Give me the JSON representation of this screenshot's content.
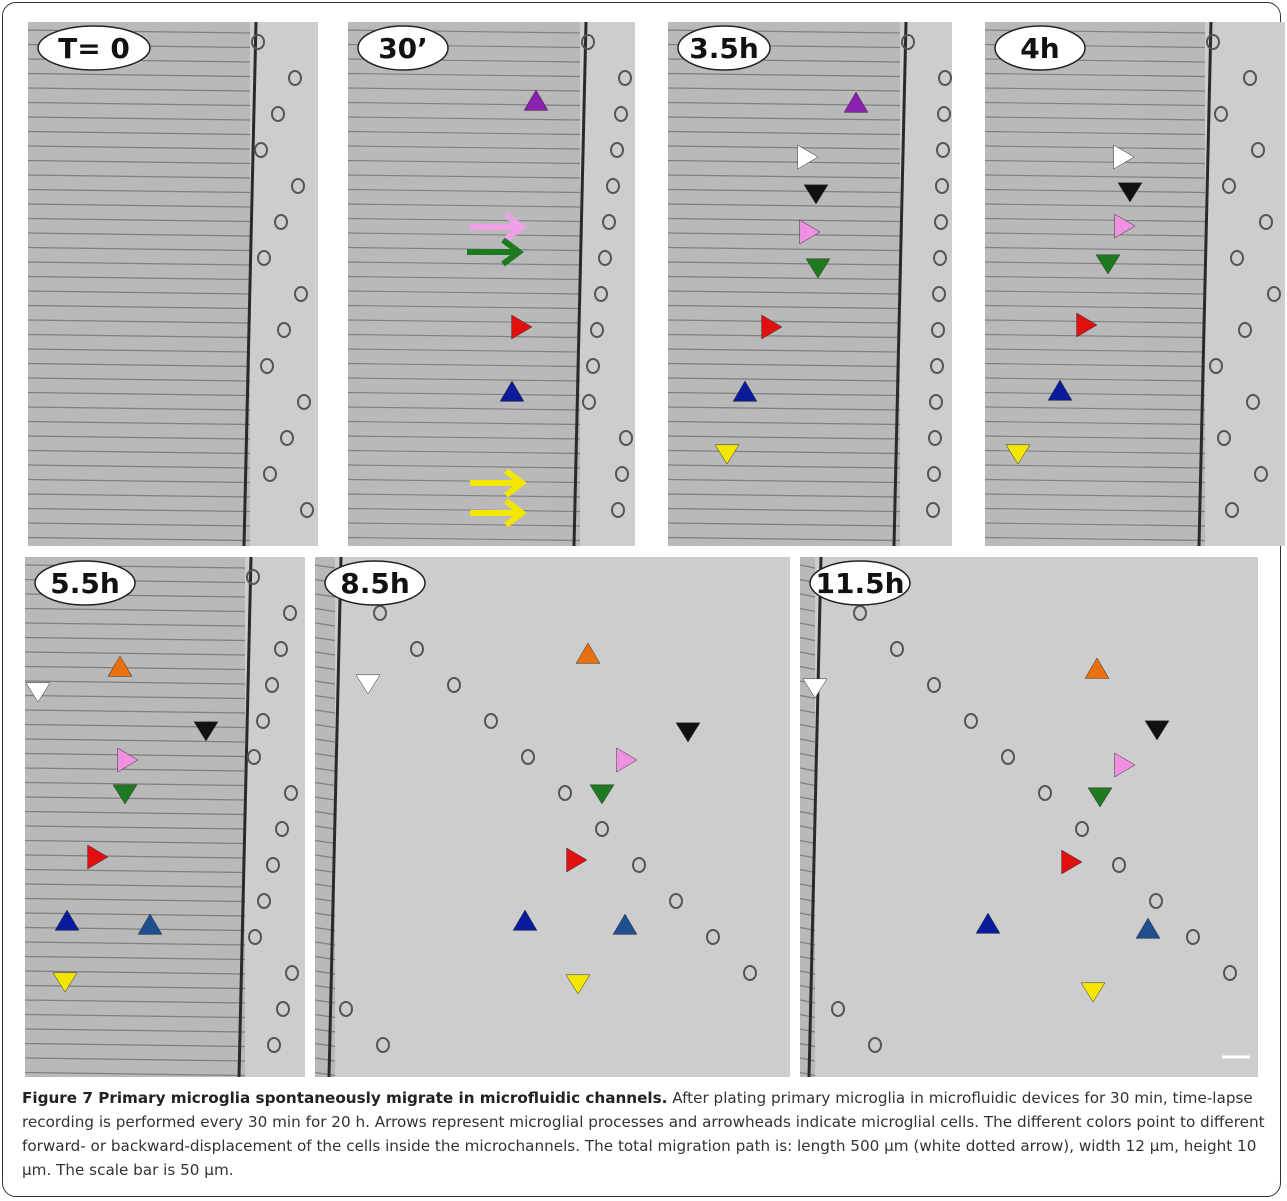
{
  "figure": {
    "panels": [
      {
        "label": "T= 0"
      },
      {
        "label": "30’"
      },
      {
        "label": "3.5h"
      },
      {
        "label": "4h"
      },
      {
        "label": "5.5h"
      },
      {
        "label": "8.5h"
      },
      {
        "label": "11.5h"
      }
    ],
    "caption": {
      "title": "Figure 7 Primary microglia spontaneously migrate in microfluidic channels.",
      "text": "After plating primary microglia in microfluidic devices for 30 min, time-lapse recording is performed every 30 min for 20 h. Arrows represent microglial processes and arrowheads indicate microglial cells. The different colors point to different forward- or backward-displacement of the cells inside the microchannels. The total migration path is: length 500 µm (white dotted arrow), width 12 µm, height 10 µm. The scale bar is 50 µm."
    }
  }
}
